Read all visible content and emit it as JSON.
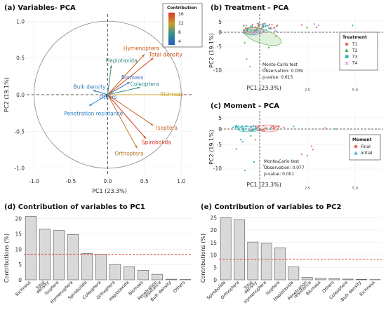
{
  "chart_data": [
    {
      "id": "a",
      "type": "scatter",
      "title": "(a) Variables- PCA",
      "xlabel": "PC1 (23.3%)",
      "ylabel": "PC2 (19.1%)",
      "xlim": [
        -1.1,
        1.15
      ],
      "ylim": [
        -1.1,
        1.1
      ],
      "xticks": [
        "-1.0",
        "-0.5",
        "0.0",
        "0.5",
        "1.0"
      ],
      "yticks": [
        "1.0",
        "0.5",
        "0.0",
        "-0.5",
        "-1.0"
      ],
      "legend_title": "Contribution",
      "legend_ticks": [
        "16",
        "12",
        "8",
        "4"
      ],
      "arrows": [
        {
          "name": "Hymenoptera",
          "x": 0.5,
          "y": 0.55,
          "color": "#c8641e"
        },
        {
          "name": "Total density",
          "x": 0.62,
          "y": 0.5,
          "color": "#d04a14"
        },
        {
          "name": "Haplotaxida",
          "x": 0.05,
          "y": 0.4,
          "color": "#3a8a86"
        },
        {
          "name": "Biomass",
          "x": 0.3,
          "y": 0.17,
          "color": "#3b6cc0"
        },
        {
          "name": "Coleoptera",
          "x": 0.44,
          "y": 0.1,
          "color": "#33938a"
        },
        {
          "name": "Richness",
          "x": 1.0,
          "y": 0.0,
          "color": "#cfa22a"
        },
        {
          "name": "Bulk density",
          "x": -0.2,
          "y": 0.06,
          "color": "#2f7bb8"
        },
        {
          "name": "Others",
          "x": -0.02,
          "y": -0.04,
          "color": "#2b6cbd"
        },
        {
          "name": "Penetration resistance",
          "x": -0.25,
          "y": -0.15,
          "color": "#2b7ec4"
        },
        {
          "name": "Isoptera",
          "x": 0.62,
          "y": -0.42,
          "color": "#c8641e"
        },
        {
          "name": "Spirobolida",
          "x": 0.52,
          "y": -0.6,
          "color": "#d9372a"
        },
        {
          "name": "Orthoptera",
          "x": 0.4,
          "y": -0.73,
          "color": "#b8772c"
        }
      ]
    },
    {
      "id": "b",
      "type": "scatter",
      "title": "(b) Treatment - PCA",
      "xlabel": "PC1 (23.3%)",
      "ylabel": "PC2 (19.1%)",
      "xticks": [
        "0",
        "2.5",
        "5.0"
      ],
      "yticks": [
        "5",
        "0",
        "-5",
        "-10"
      ],
      "legend_title": "Treatment",
      "legend_items": [
        {
          "name": "T1",
          "color": "#e6706a",
          "shape": "circle"
        },
        {
          "name": "T2",
          "color": "#4caa3c",
          "shape": "triangle"
        },
        {
          "name": "T3",
          "color": "#2fb3b8",
          "shape": "square"
        },
        {
          "name": "T4",
          "color": "#c78be0",
          "shape": "cross"
        }
      ],
      "stats": [
        "Monte-Carlo test",
        "Observation: 0.039",
        "p-value: 0.615"
      ]
    },
    {
      "id": "c",
      "type": "scatter",
      "title": "(c) Moment - PCA",
      "xlabel": "PC1 (23.3%)",
      "ylabel": "PC2 (19.1%)",
      "xticks": [
        "0",
        "2.5",
        "5.0"
      ],
      "yticks": [
        "5",
        "0",
        "-5",
        "-10"
      ],
      "legend_title": "Moment",
      "legend_items": [
        {
          "name": "Final",
          "color": "#e6706a",
          "shape": "circle"
        },
        {
          "name": "Initial",
          "color": "#2fb3b8",
          "shape": "triangle"
        }
      ],
      "stats": [
        "Monte-Carlo test",
        "Observation: 0.077",
        "p-value: 0.001"
      ]
    },
    {
      "id": "d",
      "type": "bar",
      "title": "(d) Contribution of variables to PC1",
      "ylabel": "Contributions (%)",
      "ylim": [
        0,
        21.5
      ],
      "yticks": [
        0,
        5,
        10,
        15,
        20
      ],
      "reference_line": 8.33,
      "categories": [
        "Richness",
        "Total density",
        "Isoptera",
        "Hymenoptera",
        "Spirobolida",
        "Coleoptera",
        "Orthoptera",
        "Haplotaxida",
        "Biomass",
        "Penetration resistance",
        "Bulk density",
        "Others"
      ],
      "values": [
        20.7,
        16.5,
        16.1,
        14.8,
        8.6,
        8.3,
        5.0,
        4.3,
        3.1,
        1.8,
        0.2,
        0.1
      ]
    },
    {
      "id": "e",
      "type": "bar",
      "title": "(e) Contribution of variables to PC2",
      "ylabel": "Contributions (%)",
      "ylim": [
        0,
        26.5
      ],
      "yticks": [
        0,
        5,
        10,
        15,
        20,
        25
      ],
      "reference_line": 8.33,
      "categories": [
        "Spirobolida",
        "Orthoptera",
        "Total density",
        "Hymenoptera",
        "Isoptera",
        "Haplotaxida",
        "Penetration resistance",
        "Biomass",
        "Others",
        "Coleoptera",
        "Bulk density",
        "Richness"
      ],
      "values": [
        24.9,
        24.2,
        15.2,
        14.7,
        12.9,
        5.2,
        1.0,
        0.6,
        0.5,
        0.3,
        0.2,
        0.1
      ]
    }
  ]
}
